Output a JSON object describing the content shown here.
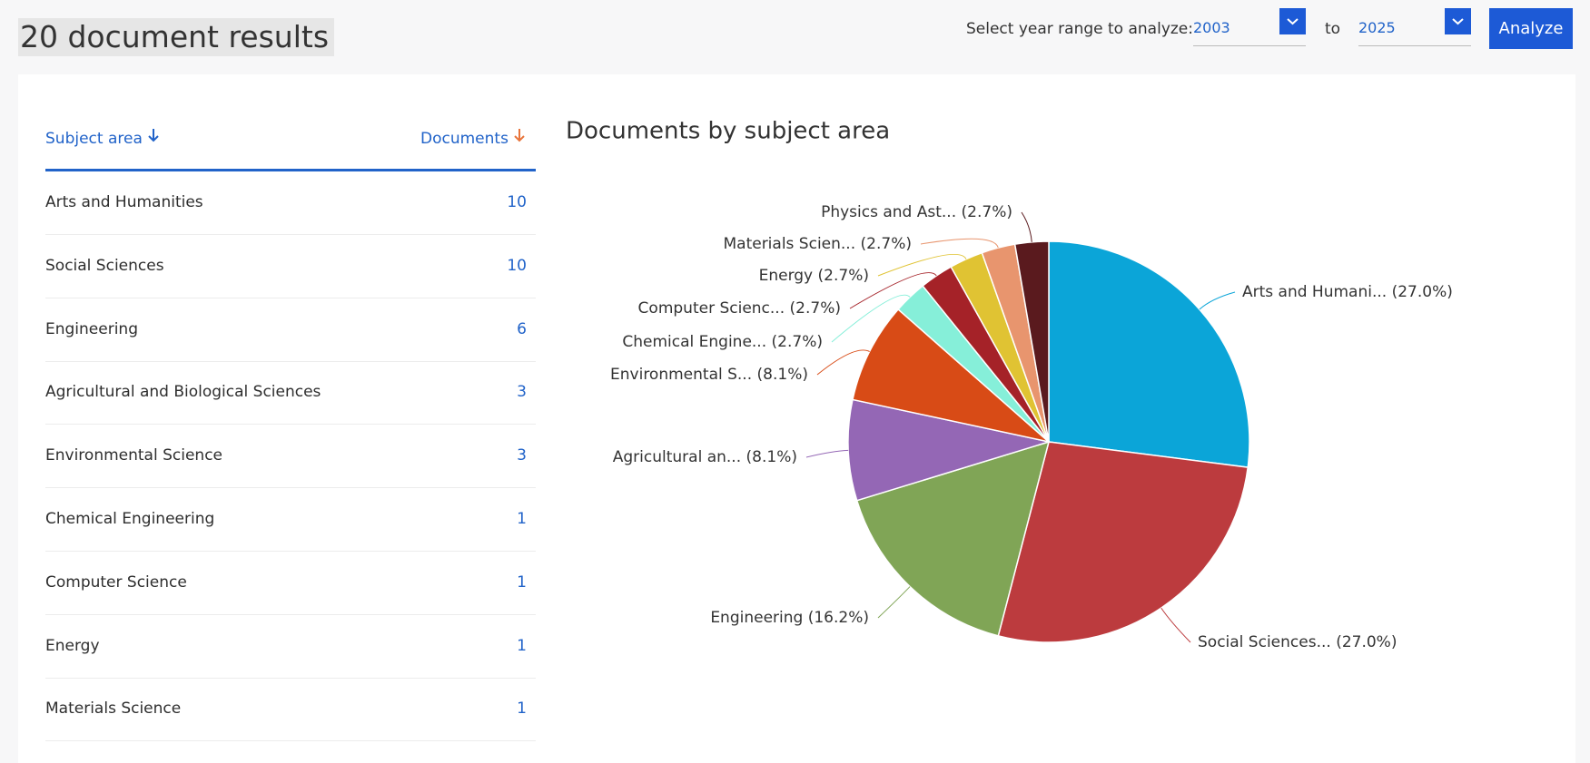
{
  "header": {
    "title": "20 document results",
    "range_label": "Select year range to analyze:",
    "from_year": "2003",
    "to_label": "to",
    "to_year": "2025",
    "button": "Analyze"
  },
  "table": {
    "columns": [
      "Subject area",
      "Documents"
    ],
    "rows": [
      [
        "Arts and Humanities",
        10
      ],
      [
        "Social Sciences",
        10
      ],
      [
        "Engineering",
        6
      ],
      [
        "Agricultural and Biological Sciences",
        3
      ],
      [
        "Environmental Science",
        3
      ],
      [
        "Chemical Engineering",
        1
      ],
      [
        "Computer Science",
        1
      ],
      [
        "Energy",
        1
      ],
      [
        "Materials Science",
        1
      ]
    ]
  },
  "chart_data": {
    "type": "pie",
    "title": "Documents by subject area",
    "categories": [
      "Arts and Humani...",
      "Social Sciences...",
      "Engineering",
      "Agricultural an...",
      "Environmental S...",
      "Chemical Engine...",
      "Computer Scienc...",
      "Energy",
      "Materials Scien...",
      "Physics and Ast..."
    ],
    "values": [
      27.0,
      27.0,
      16.2,
      8.1,
      8.1,
      2.7,
      2.7,
      2.7,
      2.7,
      2.7
    ],
    "value_labels": [
      "(27.0%)",
      "(27.0%)",
      "(16.2%)",
      "(8.1%)",
      "(8.1%)",
      "(2.7%)",
      "(2.7%)",
      "(2.7%)",
      "(2.7%)",
      "(2.7%)"
    ],
    "colors": [
      "#0ba5d8",
      "#bc3b3e",
      "#80a556",
      "#9467b5",
      "#d84b16",
      "#86efd9",
      "#a52228",
      "#e0c333",
      "#e8956e",
      "#5a1a1e"
    ]
  }
}
